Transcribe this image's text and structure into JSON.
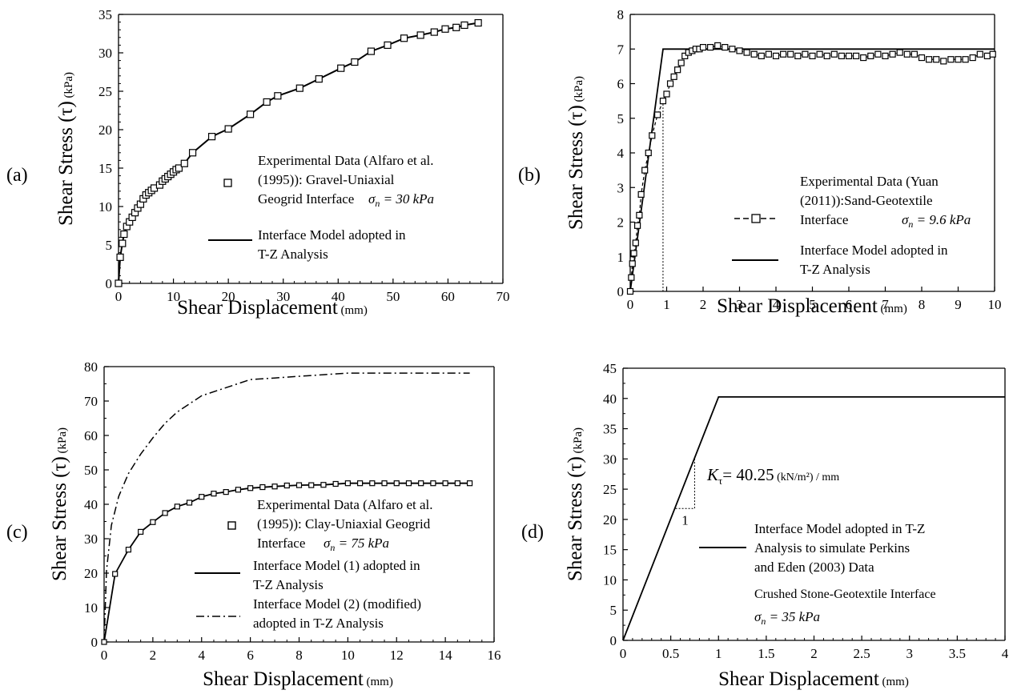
{
  "chart_data": [
    {
      "panel": "(a)",
      "type": "scatter",
      "xlabel": "Shear Displacement",
      "xunit": "(mm)",
      "ylabel": "Shear Stress (τ)",
      "yunit": "(kPa)",
      "xlim": [
        0,
        70
      ],
      "ylim": [
        0,
        35
      ],
      "xticks": [
        "0",
        "10",
        "20",
        "30",
        "40",
        "50",
        "60",
        "70"
      ],
      "yticks": [
        "0",
        "5",
        "10",
        "15",
        "20",
        "25",
        "30",
        "35"
      ],
      "series": [
        {
          "name": "Experimental Data (Alfaro et al. (1995)): Gravel-Uniaxial Geogrid Interface",
          "style": "markers",
          "x": [
            0,
            0.3,
            0.7,
            1,
            1.5,
            2,
            2.5,
            3,
            3.5,
            4,
            4.5,
            5,
            5.5,
            6,
            6.5,
            7.5,
            8,
            8.5,
            9,
            9.5,
            10,
            10.5,
            11,
            12,
            13.5,
            17,
            20,
            24,
            27,
            29,
            33,
            36.5,
            40.5,
            43,
            46,
            49,
            52,
            55,
            57.5,
            59.5,
            61.5,
            63,
            65.5
          ],
          "y": [
            0,
            3.4,
            5.2,
            6.4,
            7.4,
            8,
            8.6,
            9.2,
            9.8,
            10.3,
            11,
            11.5,
            11.8,
            12.1,
            12.4,
            12.8,
            13.3,
            13.6,
            13.9,
            14.2,
            14.5,
            14.8,
            15,
            15.6,
            17,
            19.1,
            20.1,
            22,
            23.6,
            24.4,
            25.4,
            26.6,
            28,
            28.8,
            30.2,
            31,
            31.9,
            32.3,
            32.7,
            33.1,
            33.3,
            33.6,
            33.9
          ]
        },
        {
          "name": "Interface Model adopted in T-Z Analysis",
          "style": "solid",
          "x": [
            0,
            0.3,
            0.7,
            1,
            1.5,
            2,
            3,
            4,
            5,
            6,
            7.5,
            9,
            10.5,
            12,
            13.5,
            17,
            20,
            24,
            27,
            29,
            33,
            36.5,
            40.5,
            43,
            46,
            49,
            52,
            55,
            57.5,
            59.5,
            61.5,
            63,
            65.5
          ],
          "y": [
            0,
            3.4,
            5.2,
            6.4,
            7.4,
            8,
            9.2,
            10.3,
            11.5,
            12.1,
            12.8,
            13.9,
            14.8,
            15.6,
            17,
            19.1,
            20.1,
            22,
            23.6,
            24.4,
            25.4,
            26.6,
            28,
            28.8,
            30.2,
            31,
            31.9,
            32.3,
            32.7,
            33.1,
            33.3,
            33.6,
            33.9
          ]
        }
      ],
      "legend": {
        "exp_lines": [
          "Experimental Data (Alfaro et al.",
          "(1995)): Gravel-Uniaxial",
          "Geogrid Interface"
        ],
        "sigma": "σ",
        "sigma_sub": "n",
        "sigma_value": " = 30 kPa",
        "model_lines": [
          "Interface Model adopted in",
          "T-Z Analysis"
        ]
      }
    },
    {
      "panel": "(b)",
      "type": "line",
      "xlabel": "Shear Displacement",
      "xunit": "(mm)",
      "ylabel": "Shear Stress (τ)",
      "yunit": "(kPa)",
      "xlim": [
        0,
        10
      ],
      "ylim": [
        0,
        8
      ],
      "xticks": [
        "0",
        "1",
        "2",
        "3",
        "4",
        "5",
        "6",
        "7",
        "8",
        "9",
        "10"
      ],
      "yticks": [
        "0",
        "1",
        "2",
        "3",
        "4",
        "5",
        "6",
        "7",
        "8"
      ],
      "series": [
        {
          "name": "Experimental Data (Yuan (2011)):Sand-Geotextile Interface",
          "style": "dashed-markers",
          "x": [
            0,
            0.03,
            0.06,
            0.1,
            0.15,
            0.2,
            0.25,
            0.3,
            0.4,
            0.5,
            0.6,
            0.75,
            0.9,
            1,
            1.1,
            1.2,
            1.3,
            1.4,
            1.5,
            1.6,
            1.7,
            1.8,
            1.9,
            2,
            2.2,
            2.4,
            2.6,
            2.8,
            3,
            3.2,
            3.4,
            3.6,
            3.8,
            4,
            4.2,
            4.4,
            4.6,
            4.8,
            5,
            5.2,
            5.4,
            5.6,
            5.8,
            6,
            6.2,
            6.4,
            6.6,
            6.8,
            7,
            7.2,
            7.4,
            7.6,
            7.8,
            8,
            8.2,
            8.4,
            8.6,
            8.8,
            9,
            9.2,
            9.4,
            9.6,
            9.8,
            9.95
          ],
          "y": [
            0,
            0.4,
            0.8,
            1.1,
            1.4,
            1.9,
            2.2,
            2.8,
            3.5,
            4,
            4.5,
            5.1,
            5.5,
            5.7,
            6,
            6.2,
            6.4,
            6.6,
            6.8,
            6.9,
            6.95,
            7,
            7,
            7.05,
            7.05,
            7.1,
            7.05,
            7,
            6.95,
            6.9,
            6.85,
            6.8,
            6.85,
            6.8,
            6.85,
            6.85,
            6.8,
            6.85,
            6.8,
            6.85,
            6.8,
            6.85,
            6.8,
            6.8,
            6.8,
            6.75,
            6.8,
            6.85,
            6.8,
            6.85,
            6.9,
            6.85,
            6.85,
            6.75,
            6.7,
            6.7,
            6.65,
            6.7,
            6.7,
            6.7,
            6.75,
            6.85,
            6.8,
            6.85
          ]
        },
        {
          "name": "Interface Model adopted in T-Z Analysis",
          "style": "solid",
          "x": [
            0,
            0.9,
            10
          ],
          "y": [
            0,
            7,
            7
          ]
        }
      ],
      "guide_line_x": 0.9,
      "legend": {
        "exp_lines": [
          "Experimental Data (Yuan",
          "(2011)):Sand-Geotextile",
          "Interface"
        ],
        "sigma": "σ",
        "sigma_sub": "n",
        "sigma_value": " = 9.6 kPa",
        "model_lines": [
          "Interface Model adopted in",
          "T-Z Analysis"
        ]
      }
    },
    {
      "panel": "(c)",
      "type": "line",
      "xlabel": "Shear Displacement",
      "xunit": "(mm)",
      "ylabel": "Shear Stress (τ)",
      "yunit": "(kPa)",
      "xlim": [
        0,
        16
      ],
      "ylim": [
        0,
        85
      ],
      "xticks": [
        "0",
        "2",
        "4",
        "6",
        "8",
        "10",
        "12",
        "14",
        "16"
      ],
      "yticks": [
        "0",
        "10",
        "20",
        "30",
        "40",
        "50",
        "60",
        "70",
        "80"
      ],
      "series": [
        {
          "name": "Experimental Data (Alfaro et al. (1995)): Clay-Uniaxial Geogrid Interface",
          "style": "markers",
          "x": [
            0,
            0.45,
            1,
            1.5,
            2,
            2.5,
            3,
            3.5,
            4,
            4.5,
            5,
            5.5,
            6,
            6.5,
            7,
            7.5,
            8,
            8.5,
            9,
            9.5,
            10,
            10.5,
            11,
            11.5,
            12,
            12.5,
            13,
            13.5,
            14,
            14.5,
            15
          ],
          "y": [
            0,
            21,
            28.5,
            34,
            37,
            39.8,
            41.8,
            43,
            44.8,
            45.8,
            46.3,
            47,
            47.5,
            47.8,
            48,
            48.3,
            48.4,
            48.4,
            48.5,
            48.8,
            49,
            49,
            49,
            49,
            49,
            49,
            49,
            49,
            49,
            49,
            49
          ]
        },
        {
          "name": "Interface Model (1) adopted in T-Z Analysis",
          "style": "solid",
          "x": [
            0,
            0.45,
            1,
            1.5,
            2,
            2.5,
            3,
            3.5,
            4,
            4.5,
            5,
            5.5,
            6,
            7,
            8,
            9,
            10,
            12,
            15
          ],
          "y": [
            0,
            21,
            28.5,
            34,
            37,
            39.8,
            41.8,
            43,
            44.8,
            45.8,
            46.3,
            47,
            47.5,
            48,
            48.4,
            48.5,
            49,
            49,
            49
          ]
        },
        {
          "name": "Interface Model (2) (modified) adopted in T-Z Analysis",
          "style": "dash-dot",
          "x": [
            0,
            0.1,
            0.3,
            0.6,
            1,
            1.5,
            2,
            2.5,
            3,
            4,
            5,
            6,
            7,
            8,
            9,
            10,
            11,
            12,
            13,
            14,
            15
          ],
          "y": [
            0,
            22,
            36,
            45,
            52,
            58,
            63,
            67.5,
            71,
            76,
            78.5,
            81,
            81.5,
            82,
            82.5,
            83,
            83,
            83,
            83,
            83,
            83
          ]
        }
      ],
      "legend": {
        "exp_lines": [
          "Experimental Data (Alfaro et al.",
          "(1995)): Clay-Uniaxial Geogrid",
          "Interface"
        ],
        "sigma": "σ",
        "sigma_sub": "n",
        "sigma_value": " = 75 kPa",
        "model1_lines": [
          "Interface Model (1) adopted  in",
          "T-Z Analysis"
        ],
        "model2_lines": [
          "Interface Model (2) (modified)",
          "adopted in T-Z Analysis"
        ]
      }
    },
    {
      "panel": "(d)",
      "type": "line",
      "xlabel": "Shear Displacement",
      "xunit": "(mm)",
      "ylabel": "Shear Stress (τ)",
      "yunit": "(kPa)",
      "xlim": [
        0,
        4
      ],
      "ylim": [
        0,
        45
      ],
      "xticks": [
        "0",
        "0.5",
        "1",
        "1.5",
        "2",
        "2.5",
        "3",
        "3.5",
        "4"
      ],
      "yticks": [
        "0",
        "5",
        "10",
        "15",
        "20",
        "25",
        "30",
        "35",
        "40",
        "45"
      ],
      "series": [
        {
          "name": "Interface Model adopted in T-Z Analysis to simulate Perkins and Eden (2003) Data",
          "style": "solid",
          "x": [
            0,
            1,
            4
          ],
          "y": [
            0,
            40.25,
            40.25
          ]
        }
      ],
      "slope_triangle": {
        "x1": 0.55,
        "x2": 0.75,
        "y1": 21.8,
        "label": "1"
      },
      "annotation": {
        "k": "K",
        "k_sub": "τ",
        "value": "= 40.25",
        "unit": "(kN/m²) / mm"
      },
      "legend": {
        "model_lines": [
          "Interface Model adopted in T-Z",
          "Analysis to simulate Perkins",
          "and Eden (2003) Data"
        ],
        "extra_line": "Crushed Stone-Geotextile Interface",
        "sigma": "σ",
        "sigma_sub": "n",
        "sigma_value": " = 35 kPa"
      }
    }
  ]
}
